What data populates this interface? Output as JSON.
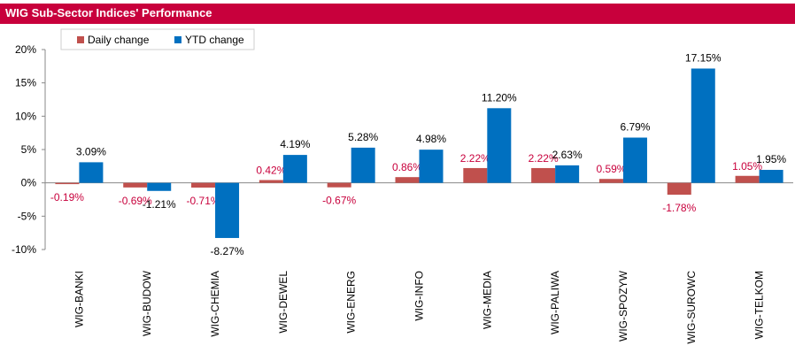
{
  "chart_data": {
    "type": "bar",
    "title": "WIG Sub-Sector Indices' Performance",
    "categories": [
      "WIG-BANKI",
      "WIG-BUDOW",
      "WIG-CHEMIA",
      "WIG-DEWEL",
      "WIG-ENERG",
      "WIG-INFO",
      "WIG-MEDIA",
      "WIG-PALIWA",
      "WIG-SPOZYW",
      "WIG-SUROWC",
      "WIG-TELKOM"
    ],
    "series": [
      {
        "name": "Daily change",
        "color": "#c0504d",
        "label_color": "#c8003c",
        "values": [
          -0.19,
          -0.69,
          -0.71,
          0.42,
          -0.67,
          0.86,
          2.22,
          2.22,
          0.59,
          -1.78,
          1.05
        ],
        "labels": [
          "-0.19%",
          "-0.69%",
          "-0.71%",
          "0.42%",
          "-0.67%",
          "0.86%",
          "2.22%",
          "2.22%",
          "0.59%",
          "-1.78%",
          "1.05%"
        ]
      },
      {
        "name": "YTD change",
        "color": "#0070c0",
        "label_color": "#000000",
        "values": [
          3.09,
          -1.21,
          -8.27,
          4.19,
          5.28,
          4.98,
          11.2,
          2.63,
          6.79,
          17.15,
          1.95
        ],
        "labels": [
          "3.09%",
          "-1.21%",
          "-8.27%",
          "4.19%",
          "5.28%",
          "4.98%",
          "11.20%",
          "2.63%",
          "6.79%",
          "17.15%",
          "1.95%"
        ]
      }
    ],
    "ylim": [
      -10,
      20
    ],
    "yticks": [
      -10,
      -5,
      0,
      5,
      10,
      15,
      20
    ],
    "ytick_labels": [
      "-10%",
      "-5%",
      "0%",
      "5%",
      "10%",
      "15%",
      "20%"
    ],
    "legend_position": "top-left",
    "grid": false
  }
}
